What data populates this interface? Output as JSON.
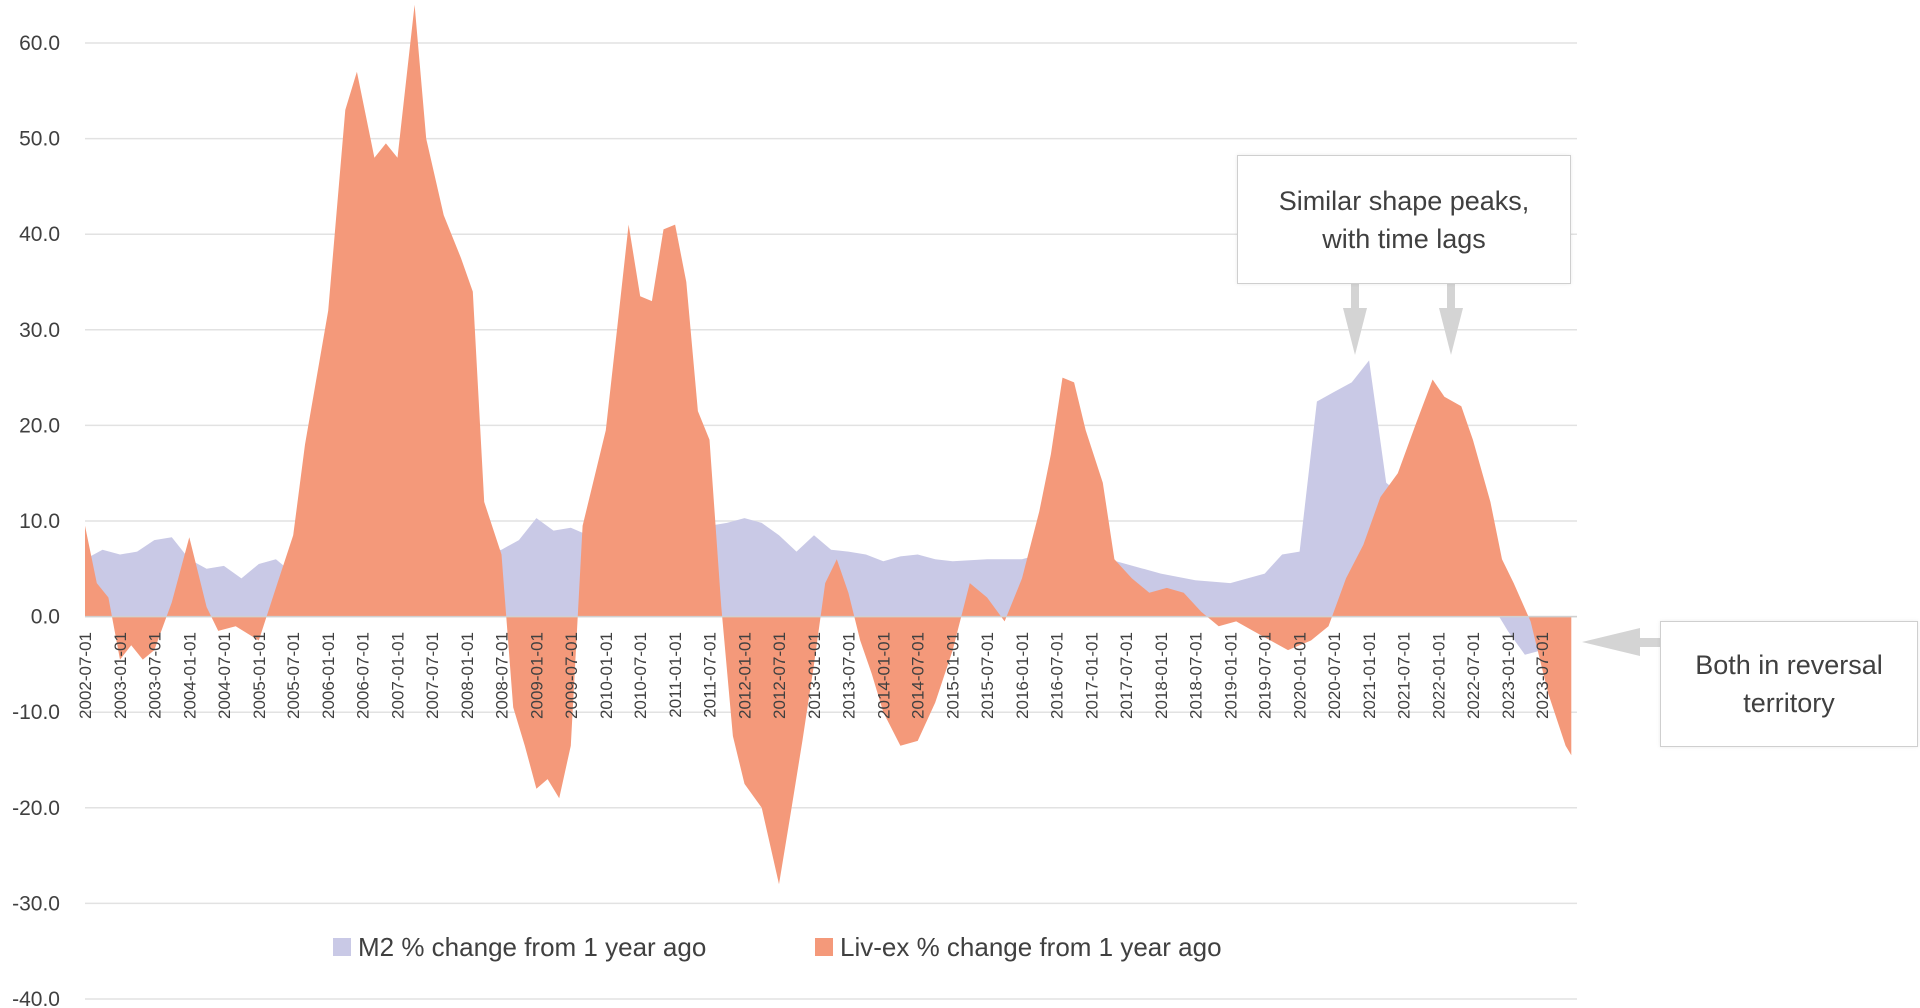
{
  "chart_data": {
    "type": "area",
    "ylim": [
      -40,
      60
    ],
    "y_ticks": [
      "60.0",
      "50.0",
      "40.0",
      "30.0",
      "20.0",
      "10.0",
      "0.0",
      "-10.0",
      "-20.0",
      "-30.0",
      "-40.0"
    ],
    "x_tick_labels": [
      "2002-07-01",
      "2003-01-01",
      "2003-07-01",
      "2004-01-01",
      "2004-07-01",
      "2005-01-01",
      "2005-07-01",
      "2006-01-01",
      "2006-07-01",
      "2007-01-01",
      "2007-07-01",
      "2008-01-01",
      "2008-07-01",
      "2009-01-01",
      "2009-07-01",
      "2010-01-01",
      "2010-07-01",
      "2011-01-01",
      "2011-07-01",
      "2012-01-01",
      "2012-07-01",
      "2013-01-01",
      "2013-07-01",
      "2014-01-01",
      "2014-07-01",
      "2015-01-01",
      "2015-07-01",
      "2016-01-01",
      "2016-07-01",
      "2017-01-01",
      "2017-07-01",
      "2018-01-01",
      "2018-07-01",
      "2019-01-01",
      "2019-07-01",
      "2020-01-01",
      "2020-07-01",
      "2021-01-01",
      "2021-07-01",
      "2022-01-01",
      "2022-07-01",
      "2023-01-01",
      "2023-07-01"
    ],
    "grid": true,
    "legend_position": "bottom",
    "series": [
      {
        "name": "M2 % change from 1 year ago",
        "color": "#c9c9e6",
        "points": [
          [
            "2002-07-01",
            6.0
          ],
          [
            "2002-10-01",
            7.0
          ],
          [
            "2003-01-01",
            6.5
          ],
          [
            "2003-04-01",
            6.8
          ],
          [
            "2003-07-01",
            8.0
          ],
          [
            "2003-10-01",
            8.3
          ],
          [
            "2004-01-01",
            6.0
          ],
          [
            "2004-04-01",
            5.0
          ],
          [
            "2004-07-01",
            5.3
          ],
          [
            "2004-10-01",
            4.0
          ],
          [
            "2005-01-01",
            5.5
          ],
          [
            "2005-04-01",
            6.0
          ],
          [
            "2005-07-01",
            4.5
          ],
          [
            "2005-10-01",
            4.0
          ],
          [
            "2006-01-01",
            4.5
          ],
          [
            "2006-07-01",
            4.8
          ],
          [
            "2007-01-01",
            5.5
          ],
          [
            "2007-07-01",
            6.0
          ],
          [
            "2008-01-01",
            6.5
          ],
          [
            "2008-07-01",
            7.0
          ],
          [
            "2008-10-01",
            8.0
          ],
          [
            "2009-01-01",
            10.3
          ],
          [
            "2009-04-01",
            9.0
          ],
          [
            "2009-07-01",
            9.3
          ],
          [
            "2009-10-01",
            8.5
          ],
          [
            "2010-01-01",
            6.5
          ],
          [
            "2010-07-01",
            3.5
          ],
          [
            "2011-01-01",
            4.5
          ],
          [
            "2011-07-01",
            9.5
          ],
          [
            "2011-10-01",
            9.8
          ],
          [
            "2012-01-01",
            10.3
          ],
          [
            "2012-04-01",
            9.8
          ],
          [
            "2012-07-01",
            8.5
          ],
          [
            "2012-10-01",
            6.8
          ],
          [
            "2013-01-01",
            8.5
          ],
          [
            "2013-04-01",
            7.0
          ],
          [
            "2013-07-01",
            6.8
          ],
          [
            "2013-10-01",
            6.5
          ],
          [
            "2014-01-01",
            5.8
          ],
          [
            "2014-04-01",
            6.3
          ],
          [
            "2014-07-01",
            6.5
          ],
          [
            "2014-10-01",
            6.0
          ],
          [
            "2015-01-01",
            5.8
          ],
          [
            "2015-07-01",
            6.0
          ],
          [
            "2016-01-01",
            6.0
          ],
          [
            "2016-07-01",
            7.0
          ],
          [
            "2017-01-01",
            6.5
          ],
          [
            "2017-07-01",
            5.5
          ],
          [
            "2018-01-01",
            4.5
          ],
          [
            "2018-07-01",
            3.8
          ],
          [
            "2019-01-01",
            3.5
          ],
          [
            "2019-07-01",
            4.5
          ],
          [
            "2019-10-01",
            6.5
          ],
          [
            "2020-01-01",
            6.8
          ],
          [
            "2020-04-01",
            22.5
          ],
          [
            "2020-07-01",
            23.5
          ],
          [
            "2020-10-01",
            24.5
          ],
          [
            "2021-01-01",
            26.8
          ],
          [
            "2021-04-01",
            14.0
          ],
          [
            "2021-07-01",
            12.5
          ],
          [
            "2021-10-01",
            12.8
          ],
          [
            "2022-01-01",
            11.0
          ],
          [
            "2022-04-01",
            8.5
          ],
          [
            "2022-07-01",
            5.0
          ],
          [
            "2022-10-01",
            1.5
          ],
          [
            "2023-01-01",
            -1.5
          ],
          [
            "2023-04-01",
            -4.0
          ],
          [
            "2023-07-01",
            -3.5
          ],
          [
            "2023-10-01",
            -2.5
          ]
        ]
      },
      {
        "name": "Liv-ex % change from 1 year ago",
        "color": "#f4997a",
        "points": [
          [
            "2002-07-01",
            9.5
          ],
          [
            "2002-09-01",
            3.5
          ],
          [
            "2002-11-01",
            2.0
          ],
          [
            "2003-01-01",
            -4.5
          ],
          [
            "2003-03-01",
            -3.0
          ],
          [
            "2003-05-01",
            -4.5
          ],
          [
            "2003-07-01",
            -3.5
          ],
          [
            "2003-10-01",
            1.5
          ],
          [
            "2004-01-01",
            8.3
          ],
          [
            "2004-04-01",
            1.0
          ],
          [
            "2004-06-01",
            -1.5
          ],
          [
            "2004-09-01",
            -1.0
          ],
          [
            "2005-01-01",
            -2.5
          ],
          [
            "2005-04-01",
            3.0
          ],
          [
            "2005-07-01",
            8.5
          ],
          [
            "2005-09-01",
            18.0
          ],
          [
            "2006-01-01",
            32.0
          ],
          [
            "2006-04-01",
            53.0
          ],
          [
            "2006-06-01",
            57.0
          ],
          [
            "2006-09-01",
            48.0
          ],
          [
            "2006-11-01",
            49.5
          ],
          [
            "2007-01-01",
            48.0
          ],
          [
            "2007-04-01",
            64.0
          ],
          [
            "2007-06-01",
            50.0
          ],
          [
            "2007-09-01",
            42.0
          ],
          [
            "2007-12-01",
            37.5
          ],
          [
            "2008-02-01",
            34.0
          ],
          [
            "2008-04-01",
            12.0
          ],
          [
            "2008-07-01",
            6.5
          ],
          [
            "2008-09-01",
            -9.5
          ],
          [
            "2008-11-01",
            -13.5
          ],
          [
            "2009-01-01",
            -18.0
          ],
          [
            "2009-03-01",
            -17.0
          ],
          [
            "2009-05-01",
            -19.0
          ],
          [
            "2009-07-01",
            -13.5
          ],
          [
            "2009-09-01",
            9.5
          ],
          [
            "2010-01-01",
            19.5
          ],
          [
            "2010-03-01",
            30.0
          ],
          [
            "2010-05-01",
            41.0
          ],
          [
            "2010-07-01",
            33.5
          ],
          [
            "2010-09-01",
            33.0
          ],
          [
            "2010-11-01",
            40.5
          ],
          [
            "2011-01-01",
            41.0
          ],
          [
            "2011-03-01",
            35.0
          ],
          [
            "2011-05-01",
            21.5
          ],
          [
            "2011-07-01",
            18.5
          ],
          [
            "2011-09-01",
            1.0
          ],
          [
            "2011-11-01",
            -12.5
          ],
          [
            "2012-01-01",
            -17.5
          ],
          [
            "2012-04-01",
            -20.0
          ],
          [
            "2012-07-01",
            -28.0
          ],
          [
            "2012-09-01",
            -20.5
          ],
          [
            "2012-11-01",
            -13.0
          ],
          [
            "2013-01-01",
            -5.0
          ],
          [
            "2013-03-01",
            3.5
          ],
          [
            "2013-05-01",
            6.0
          ],
          [
            "2013-07-01",
            2.5
          ],
          [
            "2013-09-01",
            -2.5
          ],
          [
            "2013-11-01",
            -6.0
          ],
          [
            "2014-01-01",
            -10.0
          ],
          [
            "2014-04-01",
            -13.5
          ],
          [
            "2014-07-01",
            -13.0
          ],
          [
            "2014-10-01",
            -9.0
          ],
          [
            "2015-01-01",
            -3.5
          ],
          [
            "2015-04-01",
            3.5
          ],
          [
            "2015-07-01",
            2.0
          ],
          [
            "2015-10-01",
            -0.5
          ],
          [
            "2016-01-01",
            4.0
          ],
          [
            "2016-04-01",
            11.0
          ],
          [
            "2016-06-01",
            17.0
          ],
          [
            "2016-08-01",
            25.0
          ],
          [
            "2016-10-01",
            24.5
          ],
          [
            "2016-12-01",
            19.5
          ],
          [
            "2017-03-01",
            14.0
          ],
          [
            "2017-05-01",
            6.0
          ],
          [
            "2017-08-01",
            4.0
          ],
          [
            "2017-11-01",
            2.5
          ],
          [
            "2018-02-01",
            3.0
          ],
          [
            "2018-05-01",
            2.5
          ],
          [
            "2018-08-01",
            0.5
          ],
          [
            "2018-11-01",
            -1.0
          ],
          [
            "2019-02-01",
            -0.5
          ],
          [
            "2019-05-01",
            -1.5
          ],
          [
            "2019-08-01",
            -2.5
          ],
          [
            "2019-11-01",
            -3.5
          ],
          [
            "2020-03-01",
            -2.5
          ],
          [
            "2020-06-01",
            -1.0
          ],
          [
            "2020-09-01",
            4.0
          ],
          [
            "2020-12-01",
            7.5
          ],
          [
            "2021-03-01",
            12.5
          ],
          [
            "2021-06-01",
            15.0
          ],
          [
            "2021-09-01",
            20.0
          ],
          [
            "2021-12-01",
            24.8
          ],
          [
            "2022-02-01",
            23.0
          ],
          [
            "2022-05-01",
            22.0
          ],
          [
            "2022-07-01",
            18.5
          ],
          [
            "2022-10-01",
            12.0
          ],
          [
            "2022-12-01",
            6.0
          ],
          [
            "2023-02-01",
            3.5
          ],
          [
            "2023-05-01",
            -0.5
          ],
          [
            "2023-08-01",
            -8.0
          ],
          [
            "2023-11-01",
            -13.5
          ],
          [
            "2023-12-01",
            -14.5
          ]
        ]
      }
    ]
  },
  "annotations": {
    "peaks_text": "Similar shape peaks,\nwith time lags",
    "reversal_text": "Both in reversal\nterritory"
  }
}
